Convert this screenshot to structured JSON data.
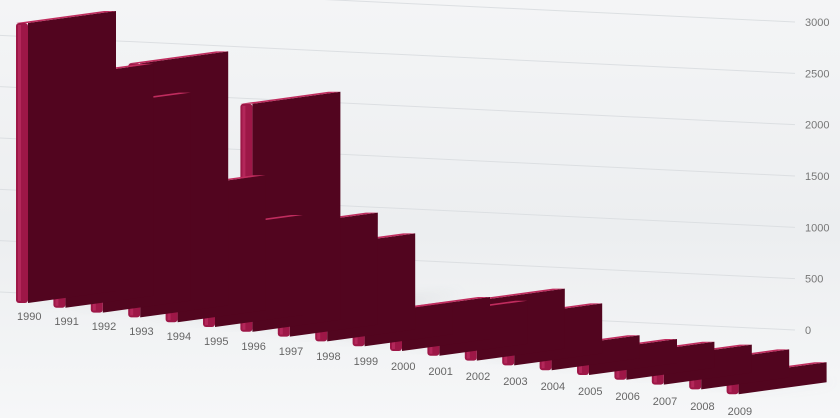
{
  "chart_data": {
    "type": "bar",
    "categories": [
      "1990",
      "1991",
      "1992",
      "1993",
      "1994",
      "1995",
      "1996",
      "1997",
      "1998",
      "1999",
      "2000",
      "2001",
      "2002",
      "2003",
      "2004",
      "2005",
      "2006",
      "2007",
      "2008",
      "2009"
    ],
    "values": [
      2800,
      2320,
      2080,
      2540,
      1350,
      1000,
      2280,
      1120,
      960,
      320,
      420,
      430,
      600,
      500,
      230,
      240,
      260,
      280,
      280,
      200
    ],
    "title": "",
    "xlabel": "",
    "ylabel": "",
    "ylim": [
      0,
      3000
    ],
    "yticks": [
      "3000",
      "2500",
      "2000",
      "1500",
      "1000",
      "500",
      "0"
    ],
    "grid": true,
    "colors": {
      "bar_front": "#9d1747",
      "bar_side": "#52051f",
      "bar_top": "#c02c5e"
    }
  }
}
